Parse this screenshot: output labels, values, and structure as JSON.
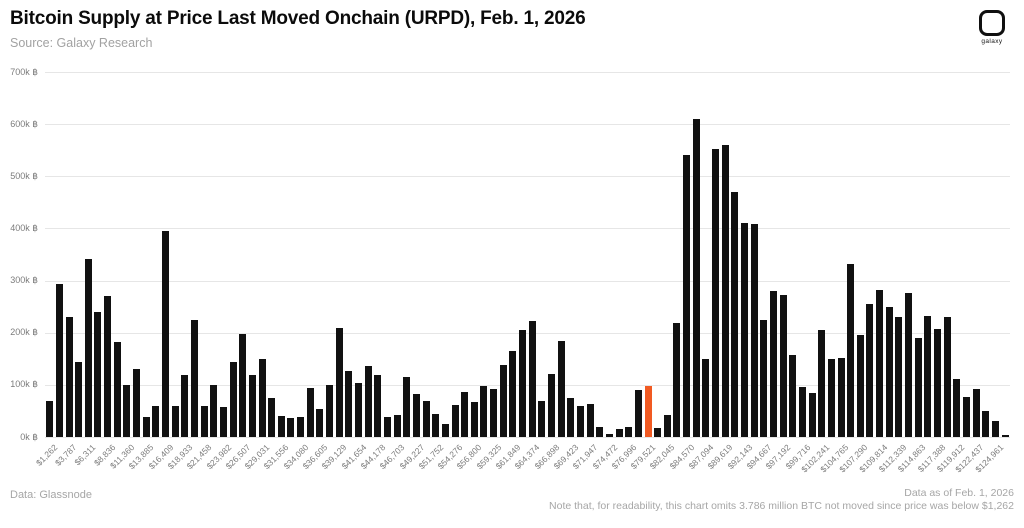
{
  "header": {
    "title": "Bitcoin Supply at Price Last Moved Onchain (URPD), Feb. 1, 2026",
    "subtitle": "Source: Galaxy Research"
  },
  "logo": {
    "text": "galaxy",
    "icon": "galaxy-squircle-icon"
  },
  "footer": {
    "left": "Data: Glassnode",
    "right_line1": "Data as of Feb. 1, 2026",
    "right_line2": "Note that, for readability, this chart omits 3.786 million BTC not moved since price was below $1,262"
  },
  "colors": {
    "bar": "#111111",
    "highlight": "#F15A22",
    "grid": "#e6e6e6",
    "axis_text": "#7c7c7c"
  },
  "chart_data": {
    "type": "bar",
    "title": "Bitcoin Supply at Price Last Moved Onchain (URPD), Feb. 1, 2026",
    "values_unit": "thousand BTC",
    "ylim": [
      0,
      700
    ],
    "grid": true,
    "y_ticks": [
      "0k ฿",
      "100k ฿",
      "200k ฿",
      "300k ฿",
      "400k ฿",
      "500k ฿",
      "600k ฿",
      "700k ฿"
    ],
    "x_tick_every": 2,
    "x_tick_labels": [
      "$1,262",
      "$3,787",
      "$6,311",
      "$8,836",
      "$11,360",
      "$13,885",
      "$16,409",
      "$18,933",
      "$21,458",
      "$23,982",
      "$26,507",
      "$29,031",
      "$31,556",
      "$34,080",
      "$36,605",
      "$39,129",
      "$41,654",
      "$44,178",
      "$46,703",
      "$49,227",
      "$51,752",
      "$54,276",
      "$56,800",
      "$59,325",
      "$61,849",
      "$64,374",
      "$66,898",
      "$69,423",
      "$71,947",
      "$74,472",
      "$76,996",
      "$79,521",
      "$82,045",
      "$84,570",
      "$87,094",
      "$89,619",
      "$92,143",
      "$94,667",
      "$97,192",
      "$99,716",
      "$102,241",
      "$104,765",
      "$107,290",
      "$109,814",
      "$112,339",
      "$114,863",
      "$117,388",
      "$119,912",
      "$122,437",
      "$124,961"
    ],
    "values": [
      70,
      294,
      231,
      143,
      341,
      240,
      270,
      183,
      100,
      130,
      38,
      59,
      396,
      60,
      119,
      225,
      60,
      100,
      57,
      143,
      198,
      118,
      150,
      75,
      41,
      36,
      38,
      94,
      54,
      100,
      209,
      127,
      104,
      136,
      119,
      39,
      42,
      116,
      83,
      70,
      44,
      25,
      62,
      87,
      67,
      97,
      93,
      138,
      165,
      205,
      222,
      70,
      121,
      184,
      75,
      60,
      63,
      19,
      5,
      15,
      19,
      91,
      98,
      17,
      43,
      218,
      541,
      610,
      149,
      552,
      560,
      470,
      410,
      408,
      224,
      280,
      273,
      157,
      95,
      84,
      206,
      149,
      152,
      332,
      195,
      256,
      281,
      249,
      230,
      277,
      189,
      233,
      208,
      231,
      111,
      76,
      93,
      49,
      30,
      4
    ],
    "highlight": {
      "index": 62,
      "x_label": "$79,521",
      "color": "#F15A22"
    }
  }
}
